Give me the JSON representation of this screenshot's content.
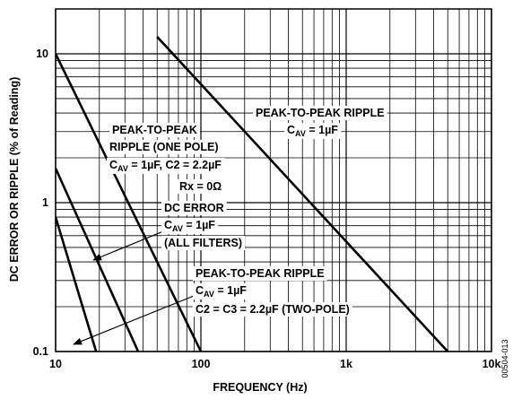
{
  "chart_data": {
    "type": "line",
    "xlabel": "FREQUENCY (Hz)",
    "ylabel": "DC ERROR OR RIPPLE (% of Reading)",
    "log_x": true,
    "log_y": true,
    "grid": true,
    "color": "#000000",
    "xlim": [
      10,
      10000
    ],
    "xticks": [
      10,
      100,
      {
        "value": 1000,
        "label": "1k"
      },
      {
        "value": 10000,
        "label": "10k"
      }
    ],
    "x_minor_ticks": [
      20,
      30,
      40,
      50,
      60,
      70,
      80,
      90,
      200,
      300,
      400,
      500,
      600,
      700,
      800,
      900,
      2000,
      3000,
      4000,
      5000,
      6000,
      7000,
      8000,
      9000
    ],
    "ylim": [
      0.1,
      20
    ],
    "yticks": [
      0.1,
      1,
      10
    ],
    "y_minor_ticks": [
      0.2,
      0.3,
      0.4,
      0.5,
      0.6,
      0.7,
      0.8,
      0.9,
      2,
      3,
      4,
      5,
      6,
      7,
      8,
      9,
      20
    ],
    "series": [
      {
        "x": [
          50,
          5000
        ],
        "values": [
          13,
          0.1
        ]
      },
      {
        "x": [
          10,
          100
        ],
        "values": [
          10,
          0.1
        ]
      },
      {
        "x": [
          10,
          37
        ],
        "values": [
          1.7,
          0.1
        ]
      },
      {
        "x": [
          10,
          19
        ],
        "values": [
          0.8,
          0.1
        ]
      }
    ],
    "annotations": [
      {
        "lines": [
          [
            {
              "text": "PEAK-TO-PEAK RIPPLE"
            }
          ],
          [
            {
              "text": "C"
            },
            {
              "sub": "AV"
            },
            {
              "text": " = 1µF"
            }
          ]
        ]
      },
      {
        "lines": [
          [
            {
              "text": "PEAK-TO-PEAK"
            }
          ],
          [
            {
              "text": "RIPPLE (ONE POLE)"
            }
          ],
          [
            {
              "text": "C"
            },
            {
              "sub": "AV"
            },
            {
              "text": " = 1µF, C2 = 2.2µF"
            }
          ],
          [
            {
              "text": "Rx = 0Ω"
            }
          ]
        ]
      },
      {
        "lines": [
          [
            {
              "text": "DC ERROR"
            }
          ],
          [
            {
              "text": "C"
            },
            {
              "sub": "AV"
            },
            {
              "text": " = 1µF"
            }
          ],
          [
            {
              "text": "(ALL FILTERS)"
            }
          ]
        ]
      },
      {
        "lines": [
          [
            {
              "text": "PEAK-TO-PEAK RIPPLE"
            }
          ],
          [
            {
              "text": "C"
            },
            {
              "sub": "AV"
            },
            {
              "text": " = 1µF"
            }
          ],
          [
            {
              "text": "C2 = C3 = 2.2µF (TWO-POLE)"
            }
          ]
        ]
      }
    ],
    "figure_id": "00504-013"
  }
}
